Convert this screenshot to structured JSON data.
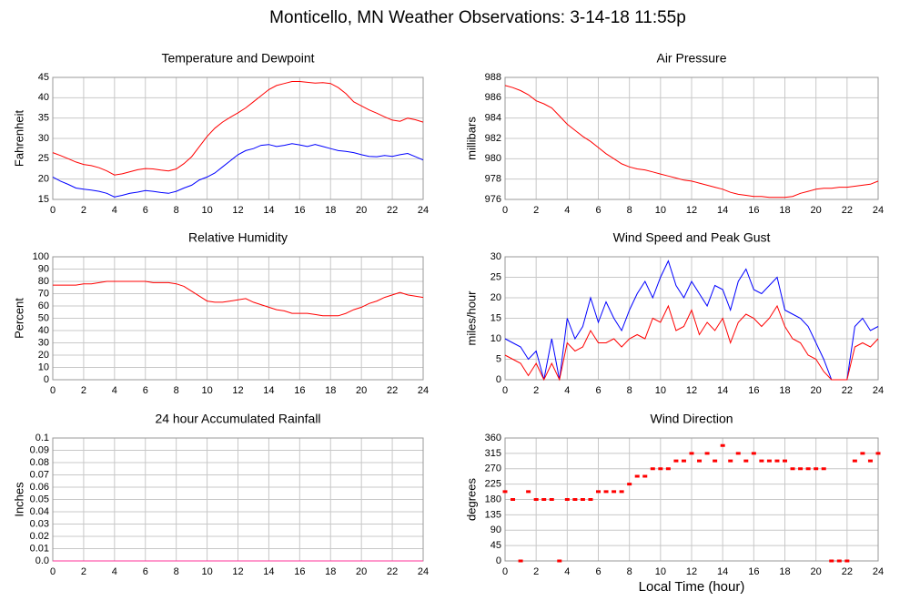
{
  "title": "Monticello, MN Weather Observations: 3-14-18 11:55p",
  "chart_data": [
    {
      "type": "line",
      "title": "Temperature and Dewpoint",
      "ylabel": "Fahrenheit",
      "x": [
        0,
        0.5,
        1,
        1.5,
        2,
        2.5,
        3,
        3.5,
        4,
        4.5,
        5,
        5.5,
        6,
        6.5,
        7,
        7.5,
        8,
        8.5,
        9,
        9.5,
        10,
        10.5,
        11,
        11.5,
        12,
        12.5,
        13,
        13.5,
        14,
        14.5,
        15,
        15.5,
        16,
        16.5,
        17,
        17.5,
        18,
        18.5,
        19,
        19.5,
        20,
        20.5,
        21,
        21.5,
        22,
        22.5,
        23,
        23.5,
        24
      ],
      "series": [
        {
          "color": "#ff0000",
          "values": [
            26.5,
            25.8,
            25,
            24.2,
            23.6,
            23.3,
            22.8,
            22,
            21,
            21.3,
            21.8,
            22.3,
            22.6,
            22.5,
            22.2,
            22,
            22.5,
            23.8,
            25.5,
            28,
            30.5,
            32.5,
            34,
            35.2,
            36.3,
            37.5,
            39,
            40.5,
            42,
            43,
            43.5,
            44,
            44,
            43.8,
            43.6,
            43.7,
            43.5,
            42.5,
            41,
            39,
            38,
            37,
            36.2,
            35.3,
            34.5,
            34.2,
            35,
            34.6,
            34
          ]
        },
        {
          "color": "#0000ff",
          "values": [
            20.5,
            19.5,
            18.7,
            17.8,
            17.5,
            17.3,
            17,
            16.5,
            15.6,
            16,
            16.5,
            16.8,
            17.2,
            17,
            16.7,
            16.5,
            17,
            17.8,
            18.5,
            19.8,
            20.5,
            21.5,
            23,
            24.5,
            26,
            27,
            27.5,
            28.3,
            28.5,
            28,
            28.3,
            28.7,
            28.4,
            28,
            28.5,
            28,
            27.5,
            27,
            26.8,
            26.5,
            26,
            25.6,
            25.5,
            25.8,
            25.6,
            26,
            26.3,
            25.5,
            24.7
          ]
        }
      ],
      "xlim": [
        0,
        24
      ],
      "xticks": [
        0,
        2,
        4,
        6,
        8,
        10,
        12,
        14,
        16,
        18,
        20,
        22,
        24
      ],
      "ylim": [
        15,
        45
      ],
      "yticks": [
        15,
        20,
        25,
        30,
        35,
        40,
        45
      ],
      "grid": true
    },
    {
      "type": "line",
      "title": "Air Pressure",
      "ylabel": "millibars",
      "x": [
        0,
        0.5,
        1,
        1.5,
        2,
        2.5,
        3,
        3.5,
        4,
        4.5,
        5,
        5.5,
        6,
        6.5,
        7,
        7.5,
        8,
        8.5,
        9,
        9.5,
        10,
        10.5,
        11,
        11.5,
        12,
        12.5,
        13,
        13.5,
        14,
        14.5,
        15,
        15.5,
        16,
        16.5,
        17,
        17.5,
        18,
        18.5,
        19,
        19.5,
        20,
        20.5,
        21,
        21.5,
        22,
        22.5,
        23,
        23.5,
        24
      ],
      "series": [
        {
          "color": "#ff0000",
          "values": [
            987.2,
            987,
            986.7,
            986.3,
            985.7,
            985.4,
            985,
            984.2,
            983.4,
            982.8,
            982.2,
            981.7,
            981.1,
            980.5,
            980,
            979.5,
            979.2,
            979,
            978.9,
            978.7,
            978.5,
            978.3,
            978.1,
            977.9,
            977.8,
            977.6,
            977.4,
            977.2,
            977,
            976.7,
            976.5,
            976.4,
            976.3,
            976.3,
            976.2,
            976.2,
            976.2,
            976.3,
            976.6,
            976.8,
            977,
            977.1,
            977.1,
            977.2,
            977.2,
            977.3,
            977.4,
            977.5,
            977.8
          ]
        }
      ],
      "xlim": [
        0,
        24
      ],
      "xticks": [
        0,
        2,
        4,
        6,
        8,
        10,
        12,
        14,
        16,
        18,
        20,
        22,
        24
      ],
      "ylim": [
        976,
        988
      ],
      "yticks": [
        976,
        978,
        980,
        982,
        984,
        986,
        988
      ],
      "grid": true
    },
    {
      "type": "line",
      "title": "Relative Humidity",
      "ylabel": "Percent",
      "x": [
        0,
        0.5,
        1,
        1.5,
        2,
        2.5,
        3,
        3.5,
        4,
        4.5,
        5,
        5.5,
        6,
        6.5,
        7,
        7.5,
        8,
        8.5,
        9,
        9.5,
        10,
        10.5,
        11,
        11.5,
        12,
        12.5,
        13,
        13.5,
        14,
        14.5,
        15,
        15.5,
        16,
        16.5,
        17,
        17.5,
        18,
        18.5,
        19,
        19.5,
        20,
        20.5,
        21,
        21.5,
        22,
        22.5,
        23,
        23.5,
        24
      ],
      "series": [
        {
          "color": "#ff0000",
          "values": [
            77,
            77,
            77,
            77,
            78,
            78,
            79,
            80,
            80,
            80,
            80,
            80,
            80,
            79,
            79,
            79,
            78,
            76,
            72,
            68,
            64,
            63,
            63,
            64,
            65,
            66,
            63,
            61,
            59,
            57,
            56,
            54,
            54,
            54,
            53,
            52,
            52,
            52,
            54,
            57,
            59,
            62,
            64,
            67,
            69,
            71,
            69,
            68,
            67
          ]
        }
      ],
      "xlim": [
        0,
        24
      ],
      "xticks": [
        0,
        2,
        4,
        6,
        8,
        10,
        12,
        14,
        16,
        18,
        20,
        22,
        24
      ],
      "ylim": [
        0,
        100
      ],
      "yticks": [
        0,
        10,
        20,
        30,
        40,
        50,
        60,
        70,
        80,
        90,
        100
      ],
      "grid": true
    },
    {
      "type": "line",
      "title": "Wind Speed and Peak Gust",
      "ylabel": "miles/hour",
      "x": [
        0,
        0.5,
        1,
        1.5,
        2,
        2.5,
        3,
        3.5,
        4,
        4.5,
        5,
        5.5,
        6,
        6.5,
        7,
        7.5,
        8,
        8.5,
        9,
        9.5,
        10,
        10.5,
        11,
        11.5,
        12,
        12.5,
        13,
        13.5,
        14,
        14.5,
        15,
        15.5,
        16,
        16.5,
        17,
        17.5,
        18,
        18.5,
        19,
        19.5,
        20,
        20.5,
        21,
        21.5,
        22,
        22.5,
        23,
        23.5,
        24
      ],
      "series": [
        {
          "color": "#0000ff",
          "values": [
            10,
            9,
            8,
            5,
            7,
            0,
            10,
            0,
            15,
            10,
            13,
            20,
            14,
            19,
            15,
            12,
            17,
            21,
            24,
            20,
            25,
            29,
            23,
            20,
            24,
            21,
            18,
            23,
            22,
            17,
            24,
            27,
            22,
            21,
            23,
            25,
            17,
            16,
            15,
            13,
            9,
            5,
            0,
            0,
            0,
            13,
            15,
            12,
            13
          ]
        },
        {
          "color": "#ff0000",
          "values": [
            6,
            5,
            4,
            1,
            4,
            0,
            4,
            0,
            9,
            7,
            8,
            12,
            9,
            9,
            10,
            8,
            10,
            11,
            10,
            15,
            14,
            18,
            12,
            13,
            17,
            11,
            14,
            12,
            15,
            9,
            14,
            16,
            15,
            13,
            15,
            18,
            13,
            10,
            9,
            6,
            5,
            2,
            0,
            0,
            0,
            8,
            9,
            8,
            10
          ]
        }
      ],
      "xlim": [
        0,
        24
      ],
      "xticks": [
        0,
        2,
        4,
        6,
        8,
        10,
        12,
        14,
        16,
        18,
        20,
        22,
        24
      ],
      "ylim": [
        0,
        30
      ],
      "yticks": [
        0,
        5,
        10,
        15,
        20,
        25,
        30
      ],
      "grid": true
    },
    {
      "type": "line",
      "title": "24 hour Accumulated Rainfall",
      "ylabel": "Inches",
      "x": [
        0,
        24
      ],
      "series": [
        {
          "color": "#ff3399",
          "values": [
            0,
            0
          ]
        }
      ],
      "xlim": [
        0,
        24
      ],
      "xticks": [
        0,
        2,
        4,
        6,
        8,
        10,
        12,
        14,
        16,
        18,
        20,
        22,
        24
      ],
      "ylim": [
        0,
        0.1
      ],
      "yticks": [
        {
          "value": 0,
          "label": "0.0"
        },
        0.01,
        0.02,
        0.03,
        0.04,
        0.05,
        0.06,
        0.07,
        0.08,
        0.09,
        0.1
      ],
      "grid": true
    },
    {
      "type": "scatter",
      "title": "Wind Direction",
      "ylabel": "degrees",
      "xlabel": "Local Time (hour)",
      "x": [
        0,
        0.5,
        1,
        1.5,
        2,
        2.5,
        3,
        3.5,
        4,
        4.5,
        5,
        5.5,
        6,
        6.5,
        7,
        7.5,
        8,
        8.5,
        9,
        9.5,
        10,
        10.5,
        11,
        11.5,
        12,
        12.5,
        13,
        13.5,
        14,
        14.5,
        15,
        15.5,
        16,
        16.5,
        17,
        17.5,
        18,
        18.5,
        19,
        19.5,
        20,
        20.5,
        21,
        21.5,
        22,
        22.5,
        23,
        23.5,
        24
      ],
      "series": [
        {
          "color": "#ff0000",
          "values": [
            203,
            180,
            0,
            203,
            180,
            180,
            180,
            0,
            180,
            180,
            180,
            180,
            203,
            203,
            203,
            203,
            225,
            248,
            248,
            270,
            270,
            270,
            293,
            293,
            315,
            293,
            315,
            293,
            338,
            293,
            315,
            293,
            315,
            293,
            293,
            293,
            293,
            270,
            270,
            270,
            270,
            270,
            0,
            0,
            0,
            293,
            315,
            293,
            315
          ]
        }
      ],
      "xlim": [
        0,
        24
      ],
      "xticks": [
        0,
        2,
        4,
        6,
        8,
        10,
        12,
        14,
        16,
        18,
        20,
        22,
        24
      ],
      "ylim": [
        0,
        360
      ],
      "yticks": [
        0,
        45,
        90,
        135,
        180,
        225,
        270,
        315,
        360
      ],
      "grid": true
    }
  ]
}
